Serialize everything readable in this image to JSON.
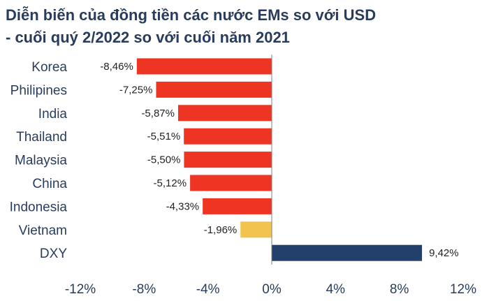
{
  "title_lines": [
    "Diễn biến của đồng tiền các nước EMs so với USD",
    "- cuối quý 2/2022 so với cuối năm 2021"
  ],
  "colors": {
    "title": "#2a3c5c",
    "negative_bar": "#ee3423",
    "vietnam_bar": "#f3c34f",
    "dxy_bar": "#233f6b",
    "axis": "#7f7f7f",
    "label_text": "#2a3c5c",
    "value_text": "#222222"
  },
  "chart_data": {
    "type": "bar",
    "orientation": "horizontal",
    "title": "Diễn biến của đồng tiền các nước EMs so với USD - cuối quý 2/2022 so với cuối năm 2021",
    "categories": [
      "Korea",
      "Philipines",
      "India",
      "Thailand",
      "Malaysia",
      "China",
      "Indonesia",
      "Vietnam",
      "DXY"
    ],
    "values": [
      -8.46,
      -7.25,
      -5.87,
      -5.51,
      -5.5,
      -5.12,
      -4.33,
      -1.96,
      9.42
    ],
    "value_labels": [
      "-8,46%",
      "-7,25%",
      "-5,87%",
      "-5,51%",
      "-5,50%",
      "-5,12%",
      "-4,33%",
      "-1,96%",
      "9,42%"
    ],
    "bar_colors": [
      "#ee3423",
      "#ee3423",
      "#ee3423",
      "#ee3423",
      "#ee3423",
      "#ee3423",
      "#ee3423",
      "#f3c34f",
      "#233f6b"
    ],
    "xlim": [
      -12,
      12
    ],
    "xticks": [
      -12,
      -8,
      -4,
      0,
      4,
      8,
      12
    ],
    "xtick_labels": [
      "-12%",
      "-8%",
      "-4%",
      "0%",
      "4%",
      "8%",
      "12%"
    ],
    "xlabel": "",
    "ylabel": "",
    "grid": false,
    "legend": "none"
  }
}
